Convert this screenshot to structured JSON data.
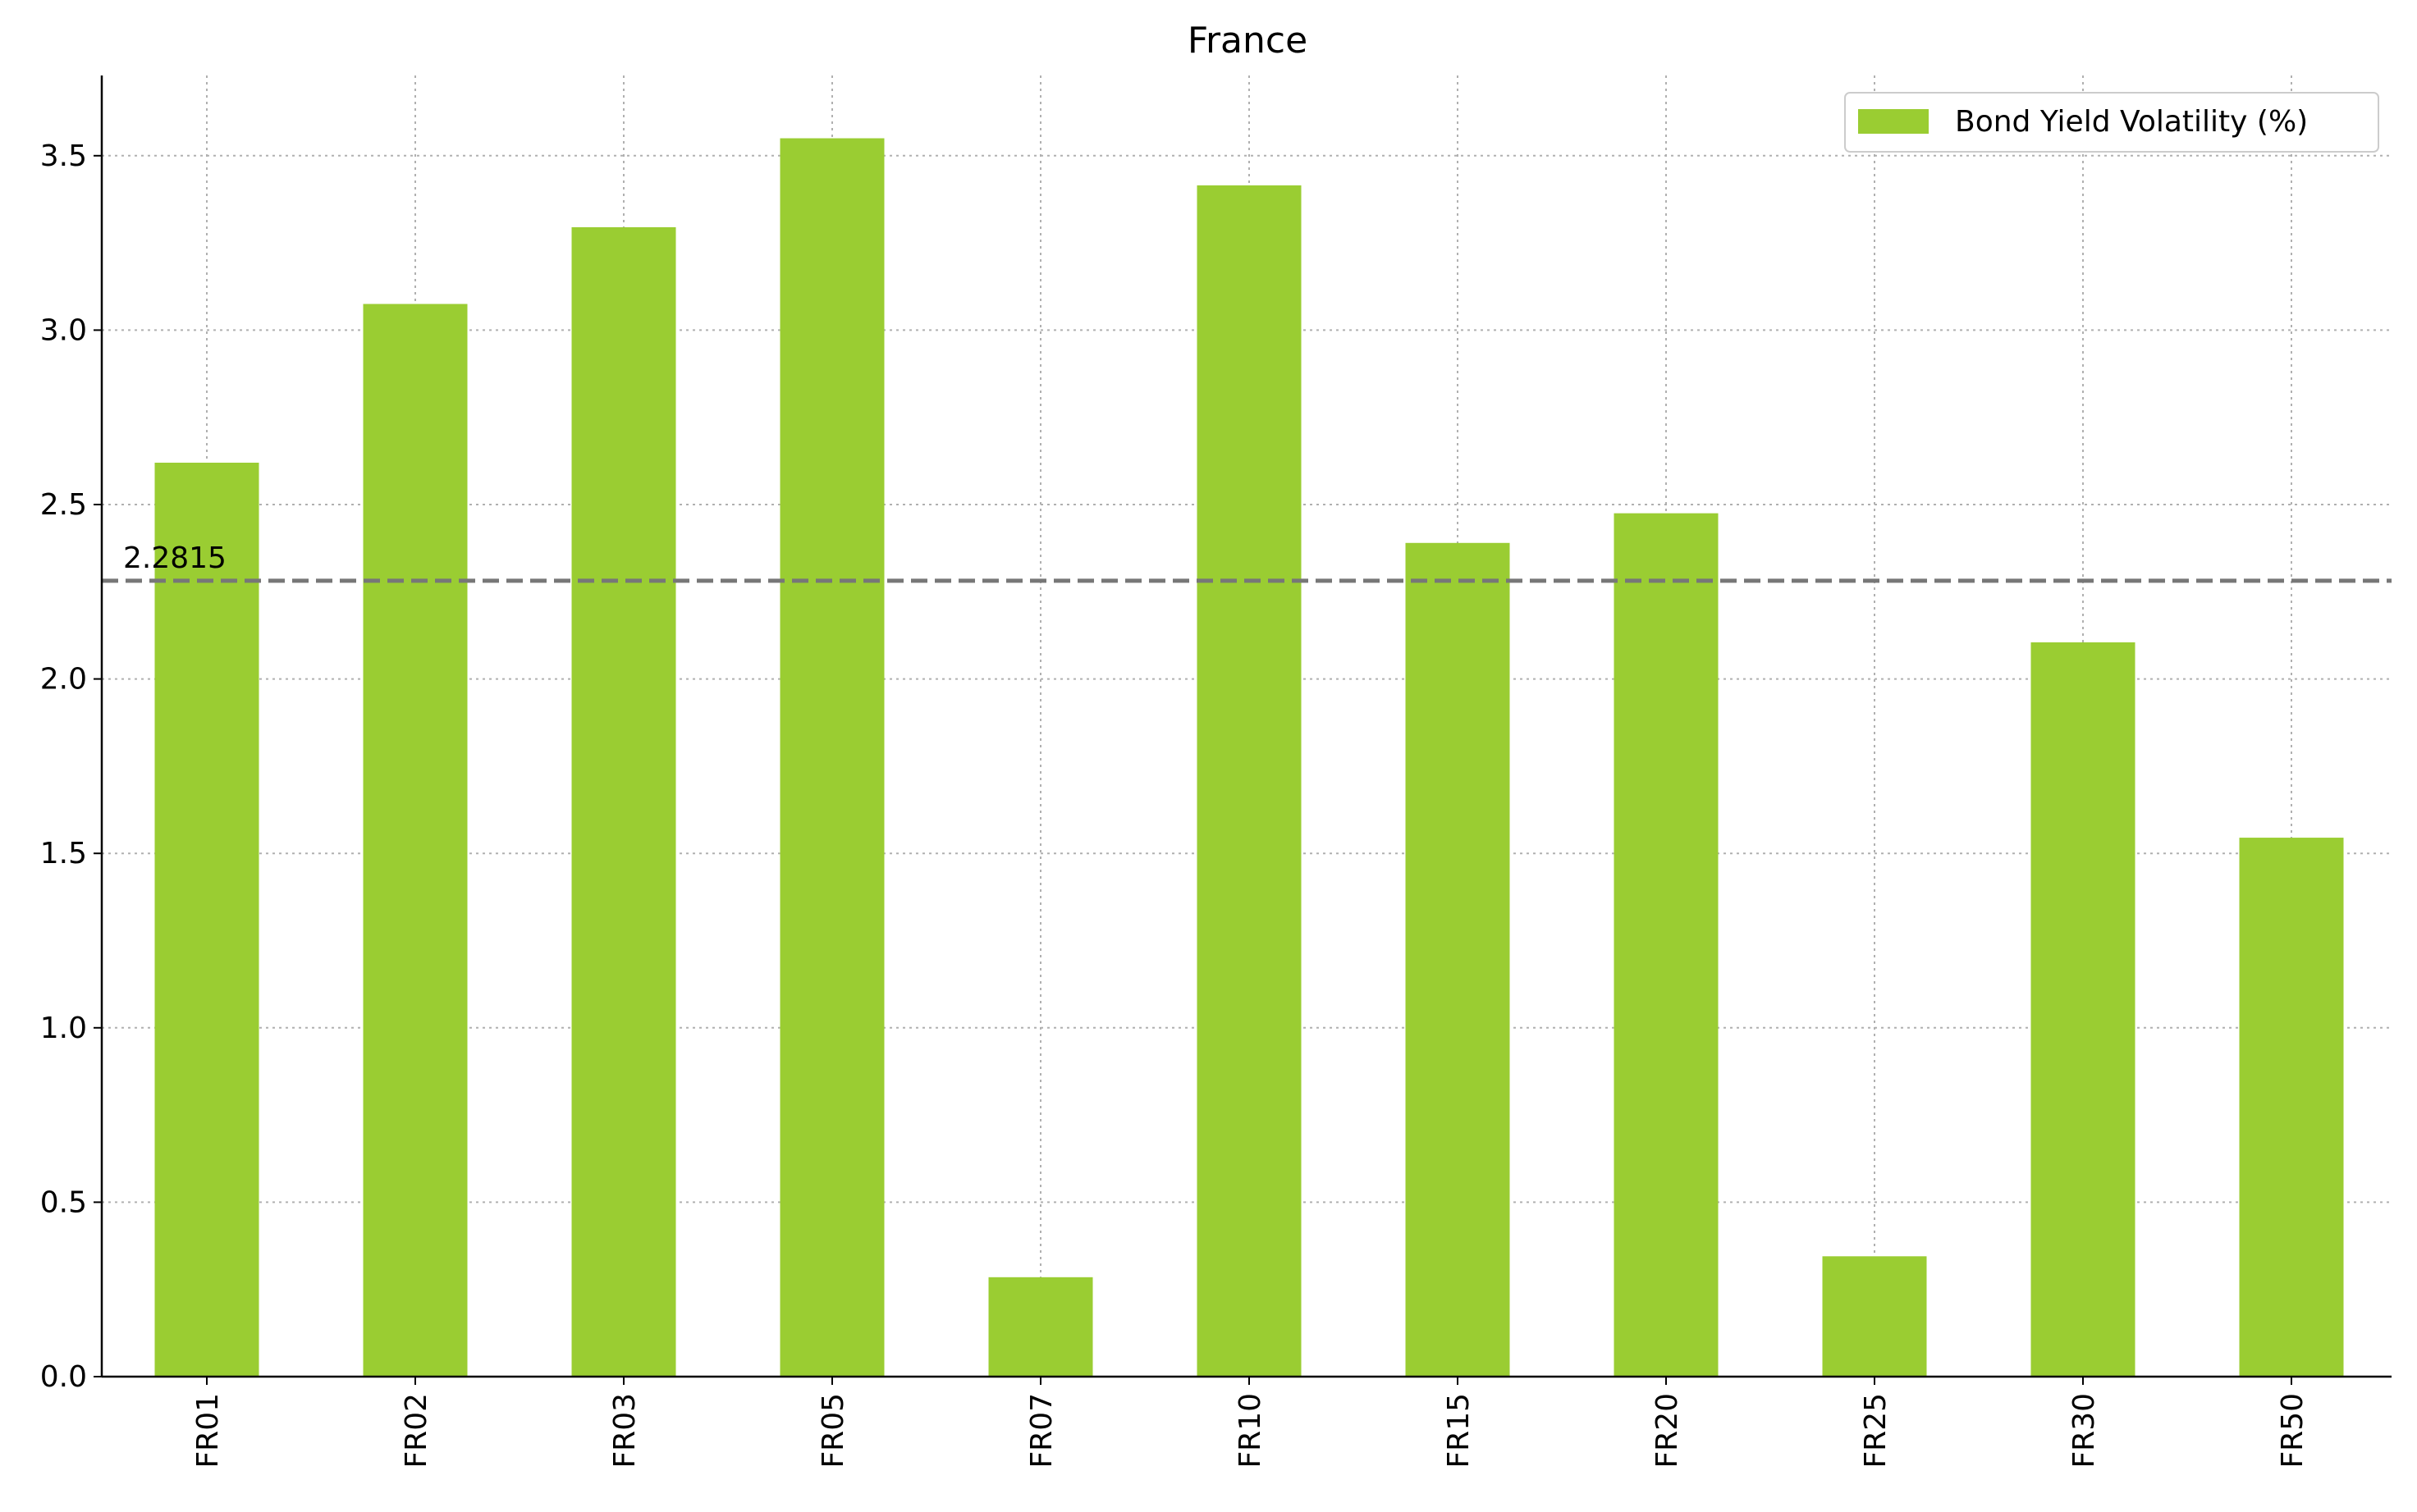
{
  "chart_data": {
    "type": "bar",
    "title": "France",
    "xlabel": "",
    "ylabel": "",
    "categories": [
      "FR01",
      "FR02",
      "FR03",
      "FR05",
      "FR07",
      "FR10",
      "FR15",
      "FR20",
      "FR25",
      "FR30",
      "FR50"
    ],
    "series": [
      {
        "name": "Bond Yield Volatility (%)",
        "values": [
          2.62,
          3.075,
          3.295,
          3.55,
          0.285,
          3.415,
          2.39,
          2.475,
          0.345,
          2.105,
          1.545
        ],
        "color": "#9acd32"
      }
    ],
    "ylim": [
      0,
      3.73
    ],
    "yticks": [
      "0.0",
      "0.5",
      "1.0",
      "1.5",
      "2.0",
      "2.5",
      "3.0",
      "3.5"
    ],
    "grid": true,
    "legend_position": "top-right",
    "reference_line": {
      "value": 2.2815,
      "label": "2.2815",
      "color": "#777777",
      "style": "dashed"
    }
  }
}
